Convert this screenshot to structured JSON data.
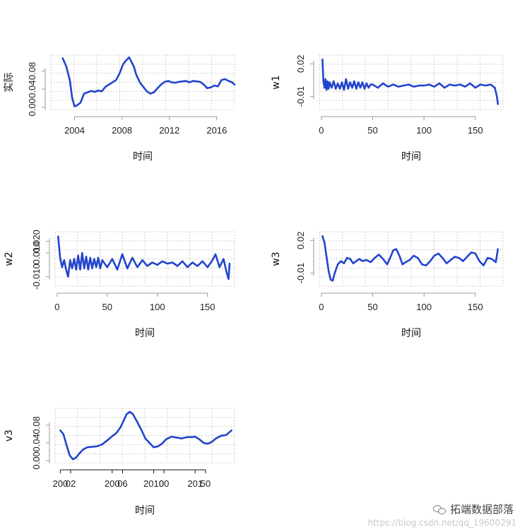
{
  "chart_data": [
    {
      "id": "shiji",
      "type": "line",
      "ylabel": "实际",
      "xlabel": "时间",
      "xlim": [
        2002.0,
        2017.5
      ],
      "ylim": [
        -0.005,
        0.115
      ],
      "xticks": [
        2004,
        2008,
        2012,
        2016
      ],
      "xtick_labels": [
        "2004",
        "2008",
        "2012",
        "2016"
      ],
      "yticks": [
        0.0,
        0.04,
        0.08
      ],
      "ytick_labels": [
        "0.00",
        "0.04",
        "0.08"
      ],
      "color": "#2244cc",
      "grid": true,
      "x": [
        2003.0,
        2003.3,
        2003.6,
        2003.8,
        2004.0,
        2004.2,
        2004.5,
        2004.8,
        2005.1,
        2005.4,
        2005.7,
        2006.0,
        2006.3,
        2006.6,
        2006.9,
        2007.2,
        2007.5,
        2007.8,
        2008.1,
        2008.4,
        2008.6,
        2008.8,
        2009.0,
        2009.2,
        2009.5,
        2009.8,
        2010.1,
        2010.4,
        2010.7,
        2011.0,
        2011.3,
        2011.6,
        2011.9,
        2012.2,
        2012.5,
        2012.8,
        2013.1,
        2013.4,
        2013.7,
        2014.0,
        2014.3,
        2014.6,
        2014.9,
        2015.2,
        2015.5,
        2015.8,
        2016.1,
        2016.4,
        2016.7,
        2017.0,
        2017.3,
        2017.5
      ],
      "y": [
        0.108,
        0.09,
        0.06,
        0.02,
        0.002,
        0.004,
        0.01,
        0.03,
        0.033,
        0.036,
        0.034,
        0.037,
        0.035,
        0.045,
        0.05,
        0.055,
        0.06,
        0.075,
        0.095,
        0.105,
        0.11,
        0.1,
        0.09,
        0.072,
        0.055,
        0.045,
        0.035,
        0.03,
        0.033,
        0.042,
        0.05,
        0.056,
        0.058,
        0.055,
        0.054,
        0.056,
        0.057,
        0.058,
        0.055,
        0.058,
        0.057,
        0.056,
        0.05,
        0.042,
        0.044,
        0.048,
        0.046,
        0.06,
        0.062,
        0.058,
        0.055,
        0.05
      ]
    },
    {
      "id": "w1",
      "type": "line",
      "ylabel": "w1",
      "xlabel": "时间",
      "xlim": [
        -2,
        177
      ],
      "ylim": [
        -0.022,
        0.028
      ],
      "xticks": [
        0,
        50,
        100,
        150
      ],
      "xtick_labels": [
        "0",
        "50",
        "100",
        "150"
      ],
      "yticks": [
        -0.01,
        0.02
      ],
      "ytick_labels": [
        "-0.01",
        "0.02"
      ],
      "color": "#2244cc",
      "grid": true,
      "x": [
        1,
        2,
        3,
        4,
        5,
        6,
        7,
        8,
        10,
        12,
        14,
        16,
        18,
        20,
        22,
        24,
        26,
        28,
        30,
        32,
        34,
        36,
        38,
        40,
        42,
        44,
        46,
        48,
        50,
        55,
        60,
        65,
        70,
        75,
        80,
        85,
        90,
        95,
        100,
        105,
        110,
        115,
        120,
        125,
        130,
        135,
        140,
        145,
        150,
        155,
        160,
        165,
        169,
        171,
        172
      ],
      "y": [
        0.024,
        0.004,
        -0.002,
        0.006,
        -0.004,
        0.004,
        -0.003,
        0.003,
        -0.002,
        0.004,
        -0.003,
        0.002,
        -0.003,
        0.003,
        -0.004,
        0.006,
        -0.003,
        0.003,
        -0.002,
        0.004,
        -0.003,
        0.003,
        -0.002,
        0.003,
        -0.003,
        0.002,
        -0.002,
        0.001,
        0.001,
        -0.002,
        0.002,
        -0.001,
        0.001,
        -0.001,
        0.0,
        0.001,
        -0.001,
        0.0,
        0.0,
        0.001,
        -0.001,
        0.002,
        -0.002,
        0.001,
        0.0,
        0.001,
        -0.001,
        0.002,
        -0.002,
        0.001,
        0.0,
        0.001,
        -0.002,
        -0.01,
        -0.017
      ]
    },
    {
      "id": "w2",
      "type": "line",
      "ylabel": "w2",
      "xlabel": "时间",
      "xlim": [
        -2,
        177
      ],
      "ylim": [
        -0.018,
        0.028
      ],
      "xticks": [
        0,
        50,
        100,
        150
      ],
      "xtick_labels": [
        "0",
        "50",
        "100",
        "150"
      ],
      "yticks": [
        -0.01,
        0.01,
        0.02
      ],
      "ytick_labels": [
        "-0.010",
        "0.010",
        "0.020"
      ],
      "color": "#2244cc",
      "grid": true,
      "x": [
        1,
        3,
        5,
        7,
        9,
        11,
        13,
        15,
        17,
        19,
        21,
        23,
        25,
        27,
        29,
        31,
        33,
        35,
        37,
        39,
        41,
        43,
        45,
        50,
        55,
        60,
        65,
        70,
        75,
        80,
        85,
        90,
        95,
        100,
        105,
        110,
        115,
        120,
        125,
        130,
        135,
        140,
        145,
        150,
        155,
        158,
        162,
        166,
        169,
        171,
        172
      ],
      "y": [
        0.024,
        0.006,
        -0.002,
        0.004,
        -0.004,
        -0.01,
        0.004,
        -0.003,
        0.005,
        -0.004,
        0.008,
        -0.004,
        0.01,
        -0.003,
        0.007,
        -0.004,
        0.006,
        -0.003,
        0.005,
        -0.002,
        0.006,
        -0.003,
        0.004,
        -0.002,
        0.005,
        -0.004,
        0.009,
        -0.003,
        0.006,
        -0.002,
        0.004,
        -0.001,
        0.002,
        0.0,
        0.003,
        0.001,
        0.002,
        -0.001,
        0.003,
        -0.002,
        0.002,
        -0.001,
        0.003,
        -0.002,
        0.004,
        0.009,
        -0.002,
        0.005,
        -0.006,
        -0.012,
        0.001
      ]
    },
    {
      "id": "w3",
      "type": "line",
      "ylabel": "w3",
      "xlabel": "时间",
      "xlim": [
        -2,
        177
      ],
      "ylim": [
        -0.022,
        0.028
      ],
      "xticks": [
        0,
        50,
        100,
        150
      ],
      "xtick_labels": [
        "0",
        "50",
        "100",
        "150"
      ],
      "yticks": [
        -0.01,
        0.02
      ],
      "ytick_labels": [
        "-0.01",
        "0.02"
      ],
      "color": "#2244cc",
      "grid": true,
      "x": [
        1,
        3,
        5,
        7,
        9,
        11,
        13,
        16,
        19,
        22,
        25,
        28,
        31,
        34,
        37,
        40,
        44,
        48,
        52,
        56,
        60,
        64,
        67,
        70,
        73,
        76,
        79,
        82,
        86,
        90,
        94,
        98,
        102,
        106,
        110,
        114,
        118,
        122,
        126,
        130,
        134,
        138,
        142,
        146,
        150,
        154,
        158,
        162,
        166,
        170,
        172
      ],
      "y": [
        0.024,
        0.018,
        0.005,
        -0.008,
        -0.016,
        -0.017,
        -0.01,
        -0.002,
        0.001,
        -0.001,
        0.004,
        0.003,
        -0.001,
        0.001,
        0.003,
        0.001,
        0.002,
        0.0,
        0.004,
        0.007,
        0.003,
        -0.002,
        0.004,
        0.011,
        0.012,
        0.006,
        -0.002,
        0.0,
        0.002,
        0.006,
        0.004,
        -0.002,
        -0.003,
        0.001,
        0.006,
        0.008,
        0.004,
        -0.001,
        0.002,
        0.005,
        0.004,
        0.001,
        0.005,
        0.009,
        0.008,
        0.001,
        -0.003,
        0.004,
        0.003,
        0.0,
        0.012
      ]
    },
    {
      "id": "v3",
      "type": "line",
      "ylabel": "v3",
      "xlabel": "时间",
      "xlim": [
        2000.5,
        2017.8
      ],
      "ylim": [
        -0.005,
        0.118
      ],
      "xticks": [
        2001,
        2002,
        2006,
        2007,
        2010,
        2011,
        2014,
        2015
      ],
      "xtick_labels": [
        "200",
        "02",
        "200",
        "06",
        "2010",
        "00",
        "201",
        "50"
      ],
      "yticks": [
        0.0,
        0.04,
        0.08
      ],
      "ytick_labels": [
        "0.00",
        "0.04",
        "0.08"
      ],
      "color": "#2244cc",
      "grid": true,
      "x": [
        2001.0,
        2001.3,
        2001.6,
        2001.9,
        2002.2,
        2002.5,
        2002.8,
        2003.2,
        2003.6,
        2004.0,
        2004.5,
        2005.0,
        2005.5,
        2006.0,
        2006.4,
        2006.8,
        2007.1,
        2007.4,
        2007.7,
        2008.0,
        2008.4,
        2008.8,
        2009.2,
        2009.6,
        2010.0,
        2010.4,
        2010.8,
        2011.2,
        2011.7,
        2012.2,
        2012.7,
        2013.2,
        2013.6,
        2014.0,
        2014.4,
        2014.8,
        2015.2,
        2015.6,
        2016.0,
        2016.5,
        2017.0,
        2017.5
      ],
      "y": [
        0.068,
        0.06,
        0.035,
        0.012,
        0.003,
        0.006,
        0.015,
        0.025,
        0.03,
        0.031,
        0.032,
        0.036,
        0.045,
        0.055,
        0.062,
        0.075,
        0.09,
        0.105,
        0.11,
        0.105,
        0.088,
        0.07,
        0.05,
        0.04,
        0.03,
        0.032,
        0.038,
        0.048,
        0.054,
        0.052,
        0.05,
        0.053,
        0.053,
        0.054,
        0.048,
        0.04,
        0.038,
        0.042,
        0.05,
        0.056,
        0.058,
        0.068
      ]
    }
  ],
  "watermark": {
    "icon": "wechat-icon",
    "brand": "拓端数据部落",
    "url": "https://blog.csdn.net/qq_19600291"
  }
}
